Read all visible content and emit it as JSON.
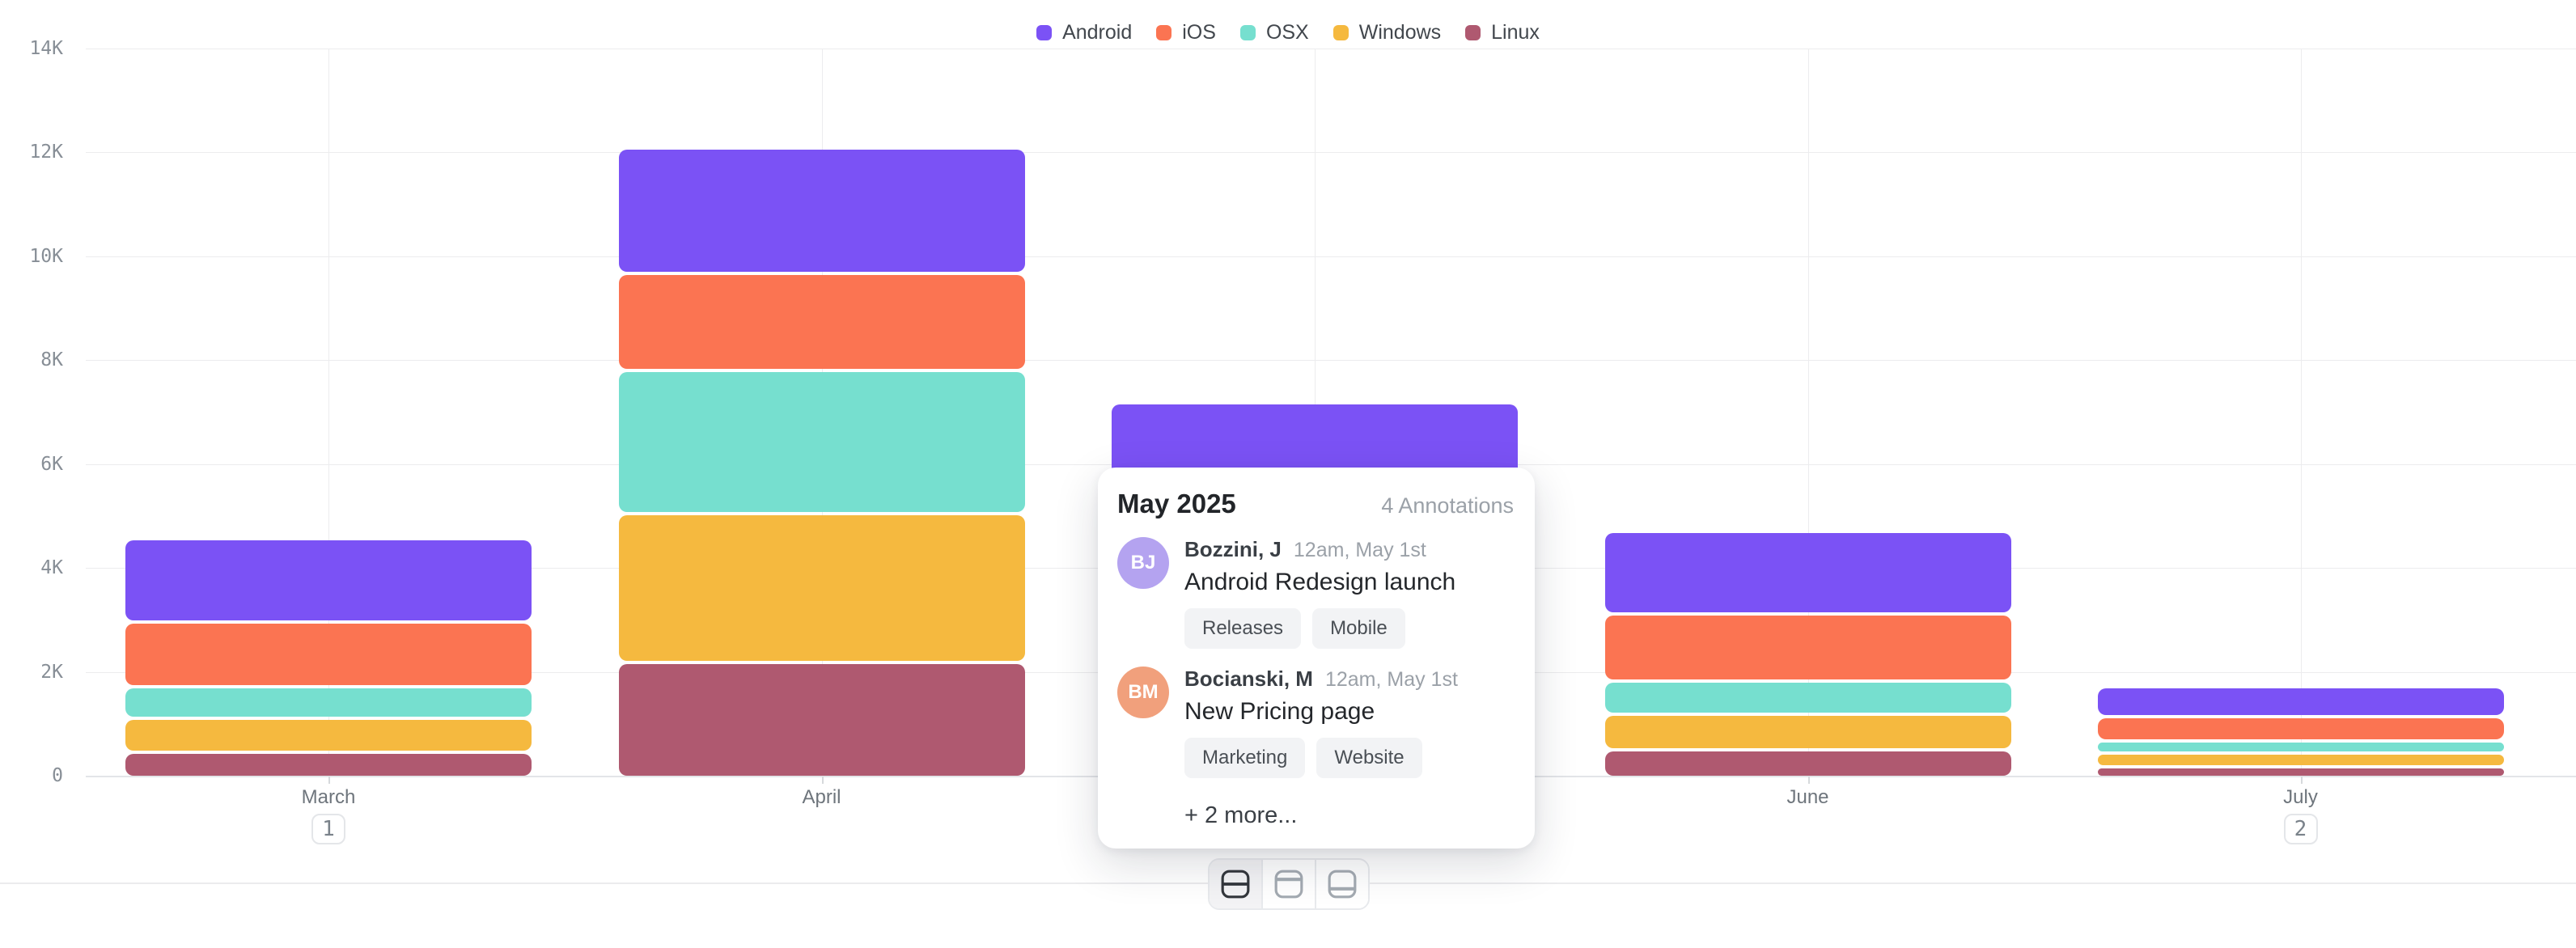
{
  "colors": {
    "badge_active": "#6c4be0",
    "grid": "#ececee",
    "background": "#ffffff"
  },
  "legend": {
    "items": [
      {
        "label": "Android",
        "color": "#7b52f5"
      },
      {
        "label": "iOS",
        "color": "#fb7452"
      },
      {
        "label": "OSX",
        "color": "#76dfcf"
      },
      {
        "label": "Windows",
        "color": "#f5b93f"
      },
      {
        "label": "Linux",
        "color": "#af5970"
      }
    ]
  },
  "chart_data": {
    "type": "bar",
    "stacked": true,
    "categories": [
      "March",
      "April",
      "May",
      "June",
      "July"
    ],
    "series": [
      {
        "name": "Android",
        "color": "#7b52f5",
        "values": [
          1550,
          2350,
          1850,
          1530,
          520
        ]
      },
      {
        "name": "iOS",
        "color": "#fb7452",
        "values": [
          1180,
          1800,
          1450,
          1230,
          410
        ]
      },
      {
        "name": "OSX",
        "color": "#76dfcf",
        "values": [
          550,
          2700,
          1350,
          580,
          160
        ]
      },
      {
        "name": "Windows",
        "color": "#f5b93f",
        "values": [
          590,
          2800,
          1450,
          620,
          210
        ]
      },
      {
        "name": "Linux",
        "color": "#af5970",
        "values": [
          420,
          2150,
          800,
          470,
          140
        ]
      }
    ],
    "title": "",
    "xlabel": "",
    "ylabel": "",
    "ylim": [
      0,
      14000
    ],
    "y_ticks": [
      "14K",
      "12K",
      "10K",
      "8K",
      "6K",
      "4K",
      "2K",
      "0"
    ],
    "grid": true,
    "legend_position": "top-center",
    "annotation_badges": [
      {
        "month": "March",
        "count": "1",
        "active": false
      },
      {
        "month": "May",
        "count": "4",
        "active": true
      },
      {
        "month": "July",
        "count": "2",
        "active": false
      }
    ]
  },
  "tooltip": {
    "title": "May 2025",
    "annotations_count": "4 Annotations",
    "entries": [
      {
        "initials": "BJ",
        "avatar_color": "#b4a3f0",
        "name": "Bozzini, J",
        "time": "12am, May 1st",
        "title": "Android Redesign launch",
        "tags": [
          "Releases",
          "Mobile"
        ]
      },
      {
        "initials": "BM",
        "avatar_color": "#f1a07c",
        "name": "Bocianski, M",
        "time": "12am, May 1st",
        "title": "New Pricing page",
        "tags": [
          "Marketing",
          "Website"
        ]
      }
    ],
    "more_label": "+ 2 more..."
  },
  "layout_toggle": {
    "options": [
      {
        "name": "split-rows",
        "active": true
      },
      {
        "name": "header-row",
        "active": false
      },
      {
        "name": "footer-row",
        "active": false
      }
    ]
  }
}
